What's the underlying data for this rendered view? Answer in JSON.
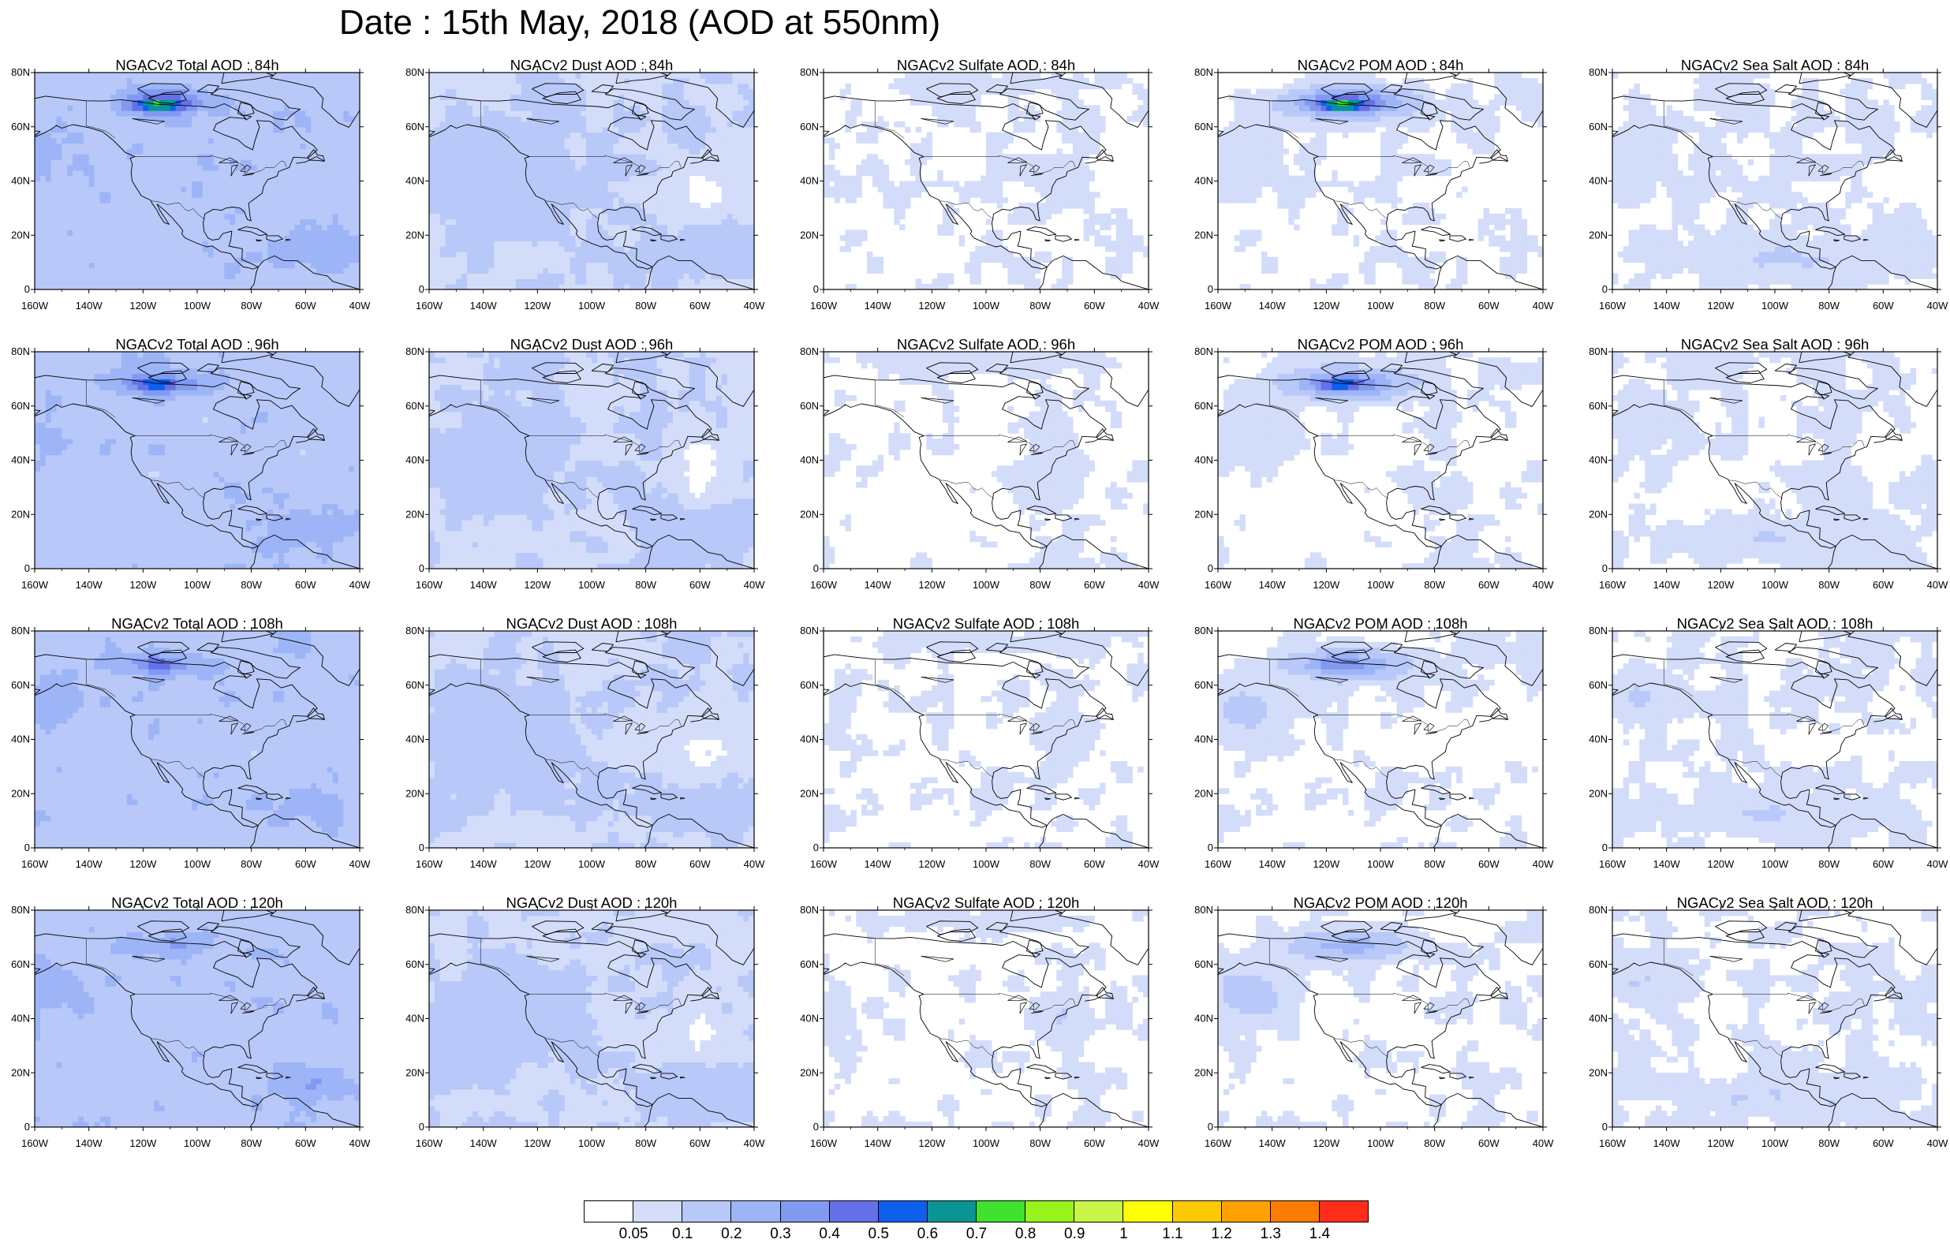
{
  "title": "Date : 15th May, 2018 (AOD at 550nm)",
  "axes": {
    "y_ticks": [
      "0",
      "20N",
      "40N",
      "60N",
      "80N"
    ],
    "x_ticks": [
      "160W",
      "140W",
      "120W",
      "100W",
      "80W",
      "60W",
      "40W"
    ]
  },
  "panels": [
    {
      "title": "NGACv2 Total AOD : 84h",
      "field": "total",
      "hour": 84
    },
    {
      "title": "NGACv2 Dust AOD : 84h",
      "field": "dust",
      "hour": 84
    },
    {
      "title": "NGACv2 Sulfate AOD : 84h",
      "field": "sulfate",
      "hour": 84
    },
    {
      "title": "NGACv2 POM AOD : 84h",
      "field": "pom",
      "hour": 84
    },
    {
      "title": "NGACv2 Sea Salt AOD : 84h",
      "field": "seasalt",
      "hour": 84
    },
    {
      "title": "NGACv2 Total AOD : 96h",
      "field": "total",
      "hour": 96
    },
    {
      "title": "NGACv2 Dust AOD : 96h",
      "field": "dust",
      "hour": 96
    },
    {
      "title": "NGACv2 Sulfate AOD : 96h",
      "field": "sulfate",
      "hour": 96
    },
    {
      "title": "NGACv2 POM AOD : 96h",
      "field": "pom",
      "hour": 96
    },
    {
      "title": "NGACv2 Sea Salt AOD : 96h",
      "field": "seasalt",
      "hour": 96
    },
    {
      "title": "NGACv2 Total AOD : 108h",
      "field": "total",
      "hour": 108
    },
    {
      "title": "NGACv2 Dust AOD : 108h",
      "field": "dust",
      "hour": 108
    },
    {
      "title": "NGACv2 Sulfate AOD : 108h",
      "field": "sulfate",
      "hour": 108
    },
    {
      "title": "NGACv2 POM AOD : 108h",
      "field": "pom",
      "hour": 108
    },
    {
      "title": "NGACv2 Sea Salt AOD : 108h",
      "field": "seasalt",
      "hour": 108
    },
    {
      "title": "NGACv2 Total AOD : 120h",
      "field": "total",
      "hour": 120
    },
    {
      "title": "NGACv2 Dust AOD : 120h",
      "field": "dust",
      "hour": 120
    },
    {
      "title": "NGACv2 Sulfate AOD : 120h",
      "field": "sulfate",
      "hour": 120
    },
    {
      "title": "NGACv2 POM AOD : 120h",
      "field": "pom",
      "hour": 120
    },
    {
      "title": "NGACv2 Sea Salt  AOD : 120h",
      "field": "seasalt",
      "hour": 120
    }
  ],
  "colorbar": {
    "colors": [
      "#ffffff",
      "#d3ddfa",
      "#b8c8f8",
      "#9db4f7",
      "#8299f2",
      "#6670e8",
      "#0f5fee",
      "#0a9595",
      "#40e22e",
      "#96f41c",
      "#c8f547",
      "#fdfd03",
      "#fdc902",
      "#fea101",
      "#ff7b00",
      "#ff2d1a"
    ],
    "labels": [
      "0.05",
      "0.1",
      "0.2",
      "0.3",
      "0.4",
      "0.5",
      "0.6",
      "0.7",
      "0.8",
      "0.9",
      "1",
      "1.1",
      "1.2",
      "1.3",
      "1.4"
    ]
  }
}
